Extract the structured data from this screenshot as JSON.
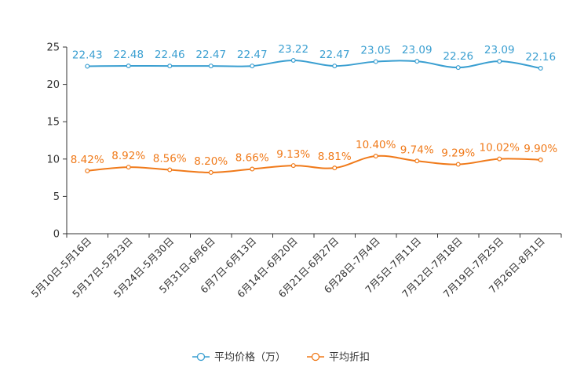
{
  "chart_data": {
    "type": "line",
    "categories": [
      "5月10日-5月16日",
      "5月17日-5月23日",
      "5月24日-5月30日",
      "5月31日-6月6日",
      "6月7日-6月13日",
      "6月14日-6月20日",
      "6月21日-6月27日",
      "6月28日-7月4日",
      "7月5日-7月11日",
      "7月12日-7月18日",
      "7月19日-7月25日",
      "7月26日-8月1日"
    ],
    "series": [
      {
        "name": "平均价格（万）",
        "color": "#3a9fd1",
        "values": [
          22.43,
          22.48,
          22.46,
          22.47,
          22.47,
          23.22,
          22.47,
          23.05,
          23.09,
          22.26,
          23.09,
          22.16
        ],
        "labels": [
          "22.43",
          "22.48",
          "22.46",
          "22.47",
          "22.47",
          "23.22",
          "22.47",
          "23.05",
          "23.09",
          "22.26",
          "23.09",
          "22.16"
        ]
      },
      {
        "name": "平均折扣",
        "color": "#f07a1a",
        "values": [
          8.42,
          8.92,
          8.56,
          8.2,
          8.66,
          9.13,
          8.81,
          10.4,
          9.74,
          9.29,
          10.02,
          9.9
        ],
        "labels": [
          "8.42%",
          "8.92%",
          "8.56%",
          "8.20%",
          "8.66%",
          "9.13%",
          "8.81%",
          "10.40%",
          "9.74%",
          "9.29%",
          "10.02%",
          "9.90%"
        ]
      }
    ],
    "ylim": [
      0,
      25
    ],
    "yticks": [
      0,
      5,
      10,
      15,
      20,
      25
    ],
    "ytick_labels": [
      "0",
      "5",
      "10",
      "15",
      "20",
      "25"
    ],
    "legend_position": "bottom-center",
    "smooth": true
  }
}
